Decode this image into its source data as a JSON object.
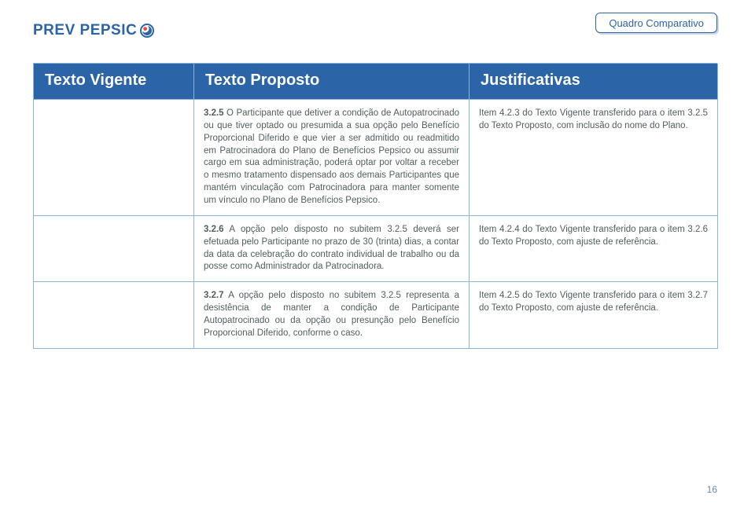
{
  "logo_text": "PREV PEPSIC",
  "badge_text": "Quadro Comparativo",
  "page_number": "16",
  "colors": {
    "brand_blue": "#2b64a7",
    "border_blue": "#8cb3d8",
    "body_text": "#4f5e5f",
    "page_number": "#6d87a1",
    "white": "#ffffff"
  },
  "headers": {
    "col1": "Texto Vigente",
    "col2": "Texto Proposto",
    "col3": "Justificativas"
  },
  "rows": [
    {
      "vigente": "",
      "proposto_prefix": "3.2.5",
      "proposto_body": " O Participante que detiver a condição de Autopatrocinado ou que tiver optado ou presumida a sua opção pelo Benefício Proporcional Diferido e que vier a ser admitido ou readmitido em Patrocinadora do Plano de Benefícios Pepsico ou assumir cargo em sua administração, poderá optar por voltar a receber o mesmo tratamento dispensado aos demais Participantes que mantém vinculação com Patrocinadora para manter somente um vínculo no Plano de Benefícios Pepsico.",
      "just": "Item 4.2.3 do Texto Vigente transferido para o item 3.2.5 do Texto Proposto, com inclusão do nome do Plano."
    },
    {
      "vigente": "",
      "proposto_prefix": "3.2.6",
      "proposto_body": " A opção pelo disposto no subitem 3.2.5 deverá ser efetuada pelo Participante no prazo de 30 (trinta) dias, a contar da data da celebração do contrato individual de trabalho ou da posse como Administrador da Patrocinadora.",
      "just": "Item 4.2.4 do Texto Vigente transferido para o item 3.2.6 do Texto Proposto, com ajuste de referência."
    },
    {
      "vigente": "",
      "proposto_prefix": "3.2.7",
      "proposto_body": " A opção pelo disposto no subitem 3.2.5 representa a desistência de manter a condição de Participante Autopatrocinado ou da opção ou presunção pelo Benefício Proporcional Diferido, conforme o caso.",
      "just": "Item 4.2.5 do Texto Vigente transferido para o item 3.2.7 do Texto Proposto, com ajuste de referência."
    }
  ]
}
